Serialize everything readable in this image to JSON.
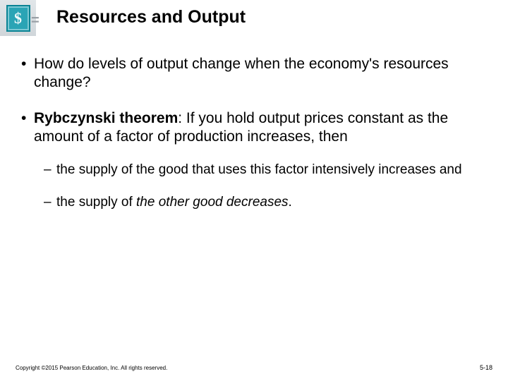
{
  "icon": {
    "glyph": "$",
    "equals": "="
  },
  "title": "Resources and Output",
  "bullets": {
    "b1": "How do levels of output change when the economy's resources change?",
    "b2": {
      "lead": "Rybczynski theorem",
      "rest": ": If you hold output prices constant as the amount of a factor of production increases, then"
    },
    "sub1": "the supply of the good that uses this factor intensively increases and",
    "sub2_a": "the supply of ",
    "sub2_b": "the other good decreases",
    "sub2_c": "."
  },
  "footer": {
    "copyright": "Copyright ©2015 Pearson Education, Inc. All rights reserved.",
    "pagenum": "5-18"
  },
  "colors": {
    "icon_bg": "#2aa4b5",
    "icon_border": "#0b8394",
    "text": "#000000",
    "background": "#ffffff"
  }
}
